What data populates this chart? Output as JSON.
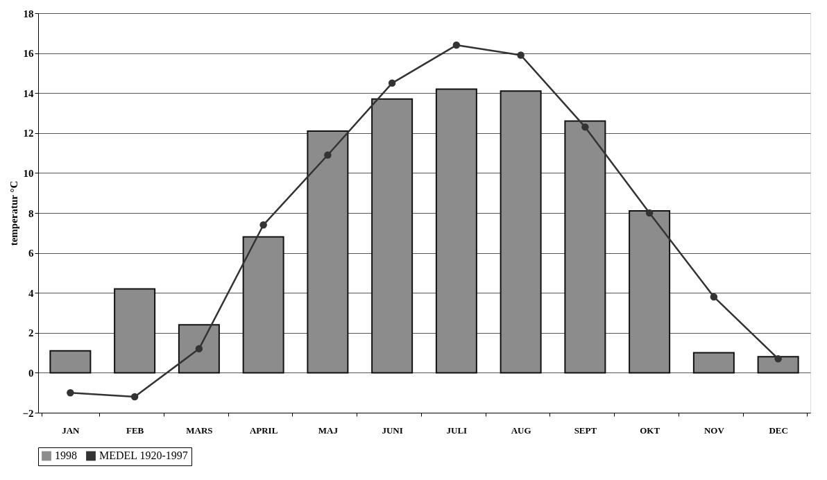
{
  "chart_data": {
    "type": "bar",
    "ylabel": "temperatur  °C",
    "categories": [
      "JAN",
      "FEB",
      "MARS",
      "APRIL",
      "MAJ",
      "JUNI",
      "JULI",
      "AUG",
      "SEPT",
      "OKT",
      "NOV",
      "DEC"
    ],
    "series": [
      {
        "name": "1998",
        "color": "#8c8c8c",
        "values": [
          1.1,
          4.2,
          2.4,
          6.8,
          12.1,
          13.7,
          14.2,
          14.1,
          12.6,
          8.1,
          1.0,
          0.8
        ]
      },
      {
        "name": "MEDEL 1920-1997",
        "type": "line",
        "color": "#333333",
        "values": [
          -1.0,
          -1.2,
          1.2,
          7.4,
          10.9,
          14.5,
          16.4,
          15.9,
          12.3,
          8.0,
          3.8,
          0.7
        ]
      }
    ],
    "ylim": [
      -2,
      18
    ],
    "yticks": [
      -2,
      0,
      2,
      4,
      6,
      8,
      10,
      12,
      14,
      16,
      18
    ],
    "grid": "y",
    "legend": "bottom",
    "marker": "circle",
    "line_style": "solid"
  }
}
